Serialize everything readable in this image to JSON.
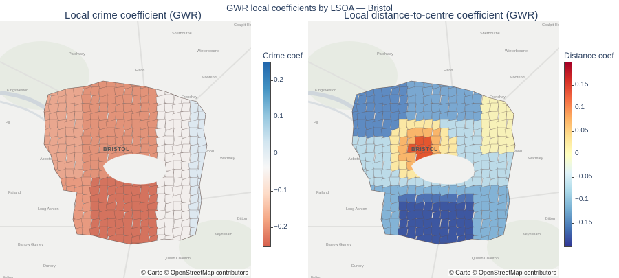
{
  "suptitle": "GWR local coefficients by LSOA — Bristol",
  "attribution": "© Carto © OpenStreetMap contributors",
  "city_label": "BRISTOL",
  "place_labels": [
    "Coalpit Heath",
    "Winterbourne",
    "Filton",
    "Moorend",
    "Patchway",
    "Pill",
    "Abbots Leigh",
    "Failand",
    "Long Ashton",
    "Kingswood",
    "Warmley",
    "Keynsham",
    "Queen Charlton",
    "Barrow Gurney",
    "Dundry",
    "Felton",
    "Norton Malreward",
    "Frenchay",
    "Bitton",
    "Kingsweston",
    "Sherbourne"
  ],
  "panels": [
    {
      "title": "Local crime coefficient (GWR)",
      "colorbar": {
        "title": "Crime coef",
        "min": -0.25,
        "max": 0.25,
        "ticks": [
          {
            "label": "0.2",
            "value": 0.2
          },
          {
            "label": "0.1",
            "value": 0.1
          },
          {
            "label": "0",
            "value": 0
          },
          {
            "label": "−0.1",
            "value": -0.1
          },
          {
            "label": "−0.2",
            "value": -0.2
          }
        ],
        "colors": [
          "#d6604d",
          "#f4a582",
          "#fddbc7",
          "#f7f7f7",
          "#d1e5f0",
          "#92c5de",
          "#4393c3",
          "#2166ac"
        ]
      }
    },
    {
      "title": "Local distance-to-centre coefficient (GWR)",
      "colorbar": {
        "title": "Distance coef",
        "min": -0.2,
        "max": 0.2,
        "ticks": [
          {
            "label": "0.15",
            "value": 0.15
          },
          {
            "label": "0.1",
            "value": 0.1
          },
          {
            "label": "0.05",
            "value": 0.05
          },
          {
            "label": "0",
            "value": 0
          },
          {
            "label": "−0.05",
            "value": -0.05
          },
          {
            "label": "−0.1",
            "value": -0.1
          },
          {
            "label": "−0.15",
            "value": -0.15
          }
        ],
        "colors": [
          "#313695",
          "#4575b4",
          "#74add1",
          "#abd9e9",
          "#e0f3f8",
          "#ffffbf",
          "#fee090",
          "#fdae61",
          "#f46d43",
          "#d73027",
          "#a50026"
        ]
      }
    }
  ]
}
